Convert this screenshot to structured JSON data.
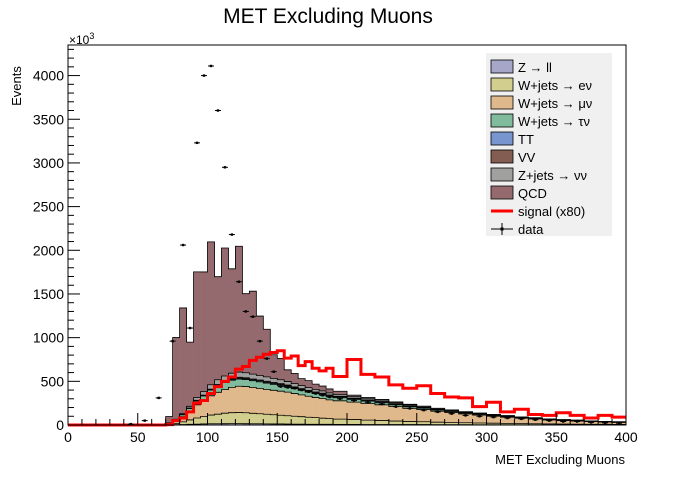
{
  "chart_data": {
    "type": "histogram",
    "title": "MET Excluding Muons",
    "xlabel": "MET Excluding Muons",
    "ylabel": "Events",
    "y_exponent_label": "×10",
    "y_exponent_power": "3",
    "xlim": [
      0,
      400
    ],
    "ylim": [
      0,
      4350
    ],
    "x_ticks": [
      0,
      50,
      100,
      150,
      200,
      250,
      300,
      350,
      400
    ],
    "y_ticks": [
      0,
      500,
      1000,
      1500,
      2000,
      2500,
      3000,
      3500,
      4000
    ],
    "grid": false,
    "legend_position": "top-right",
    "bin_edges": [
      0,
      10,
      20,
      30,
      40,
      50,
      60,
      70,
      75,
      80,
      85,
      90,
      95,
      100,
      105,
      110,
      115,
      120,
      125,
      130,
      135,
      140,
      145,
      150,
      155,
      160,
      165,
      170,
      175,
      180,
      185,
      190,
      200,
      210,
      220,
      230,
      240,
      250,
      260,
      270,
      280,
      290,
      300,
      310,
      320,
      330,
      340,
      350,
      360,
      370,
      380,
      390,
      400
    ],
    "series": [
      {
        "name": "Z → ll",
        "color": "#a6a6c8",
        "values": [
          0,
          0,
          0,
          0,
          0,
          0,
          0,
          2,
          4,
          6,
          8,
          10,
          12,
          14,
          14,
          15,
          16,
          16,
          15,
          14,
          14,
          13,
          12,
          12,
          11,
          10,
          10,
          9,
          9,
          8,
          8,
          7,
          7,
          6,
          6,
          5,
          5,
          5,
          4,
          4,
          4,
          3,
          3,
          3,
          3,
          2,
          2,
          2,
          2,
          2,
          2,
          2
        ]
      },
      {
        "name": "W+jets → eν",
        "color": "#d2cf8e",
        "values": [
          0,
          0,
          0,
          0,
          0,
          0,
          0,
          5,
          15,
          30,
          50,
          70,
          85,
          100,
          110,
          120,
          125,
          128,
          125,
          120,
          115,
          110,
          105,
          100,
          95,
          90,
          85,
          80,
          75,
          70,
          65,
          60,
          55,
          50,
          45,
          40,
          36,
          32,
          28,
          25,
          22,
          20,
          18,
          16,
          14,
          12,
          10,
          9,
          8,
          7,
          6,
          5
        ]
      },
      {
        "name": "W+jets → μν",
        "color": "#dfb98b",
        "values": [
          0,
          0,
          0,
          0,
          0,
          0,
          0,
          10,
          30,
          60,
          100,
          150,
          180,
          220,
          250,
          270,
          290,
          300,
          300,
          295,
          290,
          285,
          280,
          275,
          270,
          260,
          250,
          240,
          230,
          225,
          215,
          210,
          200,
          190,
          180,
          165,
          150,
          140,
          125,
          115,
          100,
          90,
          80,
          70,
          60,
          55,
          45,
          40,
          35,
          30,
          25,
          22
        ]
      },
      {
        "name": "W+jets → τν",
        "color": "#7fbb9c",
        "values": [
          0,
          0,
          0,
          0,
          0,
          0,
          0,
          3,
          10,
          20,
          30,
          45,
          55,
          65,
          75,
          80,
          82,
          82,
          80,
          78,
          75,
          72,
          68,
          65,
          60,
          55,
          52,
          48,
          45,
          42,
          38,
          35,
          30,
          27,
          24,
          21,
          18,
          15,
          13,
          11,
          9,
          8,
          7,
          6,
          5,
          4,
          4,
          3,
          3,
          2,
          2,
          2
        ]
      },
      {
        "name": "TT",
        "color": "#7895cf",
        "values": [
          0,
          0,
          0,
          0,
          0,
          0,
          0,
          0,
          1,
          2,
          3,
          4,
          5,
          6,
          7,
          8,
          9,
          10,
          10,
          10,
          11,
          11,
          11,
          11,
          11,
          11,
          10,
          10,
          10,
          10,
          9,
          9,
          9,
          8,
          8,
          7,
          7,
          6,
          6,
          5,
          5,
          4,
          4,
          4,
          3,
          3,
          3,
          2,
          2,
          2,
          2,
          2
        ]
      },
      {
        "name": "VV",
        "color": "#835d52",
        "values": [
          0,
          0,
          0,
          0,
          0,
          0,
          0,
          0,
          1,
          2,
          3,
          4,
          5,
          6,
          7,
          8,
          9,
          10,
          10,
          10,
          10,
          10,
          10,
          10,
          10,
          10,
          9,
          9,
          9,
          8,
          8,
          8,
          7,
          7,
          6,
          6,
          5,
          5,
          5,
          4,
          4,
          4,
          3,
          3,
          3,
          2,
          2,
          2,
          2,
          2,
          2,
          2
        ]
      },
      {
        "name": "Z+jets → νν",
        "color": "#a0a09e",
        "values": [
          0,
          0,
          0,
          0,
          0,
          0,
          0,
          2,
          5,
          10,
          20,
          30,
          40,
          50,
          55,
          60,
          62,
          60,
          58,
          55,
          52,
          50,
          48,
          45,
          40,
          38,
          35,
          32,
          30,
          28,
          25,
          22,
          20,
          18,
          16,
          14,
          12,
          10,
          9,
          8,
          7,
          6,
          5,
          5,
          4,
          4,
          3,
          3,
          3,
          2,
          2,
          2
        ]
      },
      {
        "name": "QCD",
        "color": "#956a6f",
        "values": [
          0,
          0,
          0,
          0,
          0,
          0,
          0,
          75,
          935,
          1210,
          735,
          1440,
          1370,
          1635,
          1180,
          1465,
          1195,
          1440,
          905,
          950,
          680,
          545,
          270,
          245,
          135,
          115,
          80,
          80,
          60,
          55,
          45,
          35,
          14,
          8,
          8,
          6,
          4,
          3,
          2,
          1,
          0,
          0,
          0,
          0,
          0,
          0,
          0,
          0,
          0,
          0,
          0,
          0
        ]
      }
    ],
    "signal": {
      "name": "signal (x80)",
      "color": "#ff0000",
      "values": [
        0,
        0,
        0,
        0,
        0,
        0,
        0,
        5,
        50,
        80,
        150,
        250,
        280,
        360,
        440,
        500,
        550,
        640,
        670,
        740,
        775,
        810,
        830,
        850,
        765,
        790,
        680,
        725,
        650,
        620,
        650,
        555,
        750,
        580,
        550,
        460,
        420,
        450,
        360,
        320,
        310,
        210,
        260,
        150,
        180,
        120,
        110,
        140,
        110,
        80,
        110,
        90
      ]
    },
    "data": {
      "name": "data",
      "x": [
        45,
        55,
        65,
        75,
        82.5,
        87.5,
        92.5,
        97.5,
        102.5,
        107.5,
        112.5,
        117.5,
        122.5,
        127.5,
        132.5,
        137.5,
        142.5,
        147.5,
        152.5,
        157.5,
        162.5,
        167.5,
        172.5,
        177.5,
        182.5,
        187.5,
        195,
        205,
        215,
        225,
        235,
        245,
        255,
        265,
        275,
        285,
        295,
        305,
        315,
        325,
        335,
        345,
        355,
        365,
        375,
        385,
        395
      ],
      "y": [
        10,
        50,
        310,
        960,
        2060,
        1110,
        3230,
        4000,
        4110,
        3600,
        2950,
        2180,
        1640,
        1300,
        1240,
        960,
        760,
        610,
        440,
        430,
        420,
        400,
        380,
        360,
        340,
        320,
        300,
        280,
        260,
        240,
        210,
        190,
        170,
        150,
        130,
        110,
        100,
        90,
        80,
        70,
        60,
        50,
        40,
        40,
        30,
        25,
        20
      ]
    }
  }
}
